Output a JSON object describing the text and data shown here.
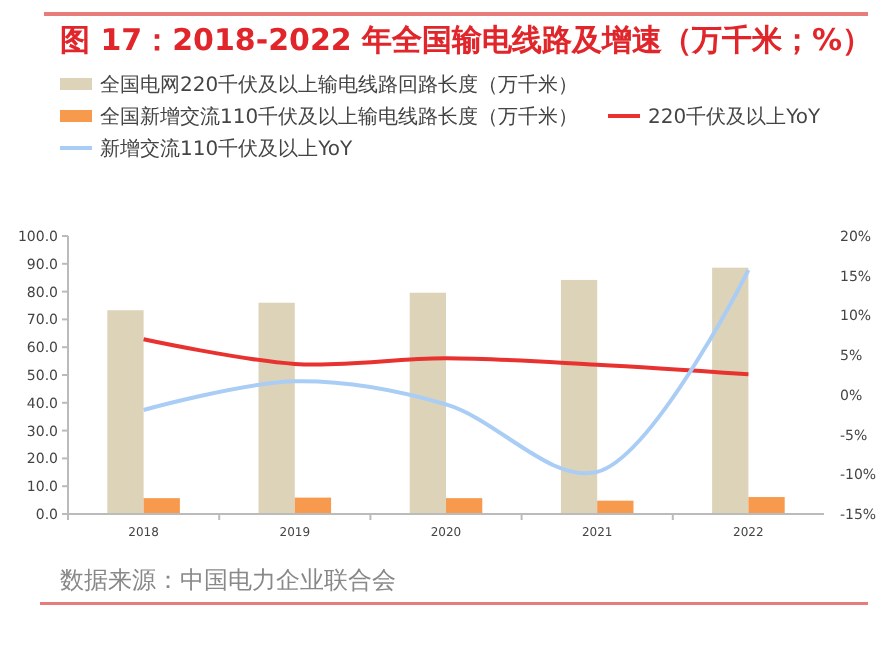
{
  "chart_data": {
    "type": "bar",
    "title": "图 17：2018-2022 年全国输电线路及增速（万千米；%）",
    "categories": [
      "2018",
      "2019",
      "2020",
      "2021",
      "2022"
    ],
    "series": [
      {
        "name": "全国电网220千伏及以上输电线路回路长度（万千米）",
        "color": "#ddd3b9",
        "values": [
          73.3,
          76.0,
          79.6,
          84.2,
          88.6
        ]
      },
      {
        "name": "全国新增交流110千伏及以上输电线路长度（万千米）",
        "color": "#f79a4e",
        "values": [
          5.7,
          5.9,
          5.7,
          4.8,
          6.1
        ]
      },
      {
        "name": "220千伏及以上YoY",
        "type": "line",
        "axis": "y2",
        "color": "#e8322f",
        "values": [
          7.0,
          3.9,
          4.6,
          3.8,
          2.6
        ]
      },
      {
        "name": "新增交流110千伏及以上YoY",
        "type": "line",
        "axis": "y2",
        "color": "#a9cdf5",
        "values": [
          -1.9,
          1.7,
          -1.2,
          -9.7,
          15.7
        ]
      }
    ],
    "ylim": [
      0,
      100
    ],
    "yticks": [
      {
        "value": 0,
        "label": "0.0"
      },
      {
        "value": 10,
        "label": "10.0"
      },
      {
        "value": 20,
        "label": "20.0"
      },
      {
        "value": 30,
        "label": "30.0"
      },
      {
        "value": 40,
        "label": "40.0"
      },
      {
        "value": 50,
        "label": "50.0"
      },
      {
        "value": 60,
        "label": "60.0"
      },
      {
        "value": 70,
        "label": "70.0"
      },
      {
        "value": 80,
        "label": "80.0"
      },
      {
        "value": 90,
        "label": "90.0"
      },
      {
        "value": 100,
        "label": "100.0"
      }
    ],
    "y2lim": [
      -15,
      20
    ],
    "y2ticks": [
      {
        "value": -15,
        "label": "-15%"
      },
      {
        "value": -10,
        "label": "-10%"
      },
      {
        "value": -5,
        "label": "-5%"
      },
      {
        "value": 0,
        "label": "0%"
      },
      {
        "value": 5,
        "label": "5%"
      },
      {
        "value": 10,
        "label": "10%"
      },
      {
        "value": 15,
        "label": "15%"
      },
      {
        "value": 20,
        "label": "20%"
      }
    ],
    "legend": "top",
    "grid": false,
    "annotations": [
      "数据来源：中国电力企业联合会"
    ]
  }
}
